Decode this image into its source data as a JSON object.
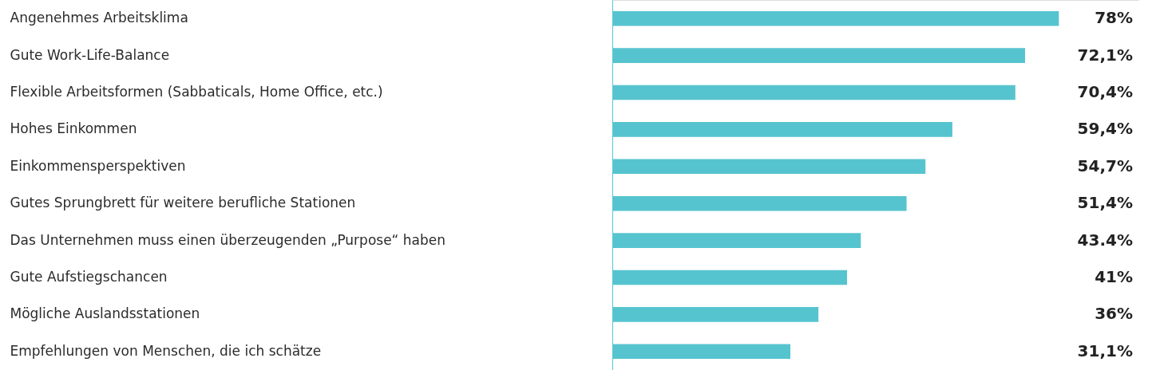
{
  "chart_data": {
    "type": "bar",
    "orientation": "horizontal",
    "color": "#56c4cf",
    "categories": [
      "Angenehmes Arbeitsklima",
      "Gute Work-Life-Balance",
      "Flexible Arbeitsformen (Sabbaticals, Home Office, etc.)",
      "Hohes Einkommen",
      "Einkommensperspektiven",
      "Gutes Sprungbrett für weitere berufliche Stationen",
      "Das Unternehmen muss einen überzeugenden „Purpose“ haben",
      "Gute Aufstiegschancen",
      "Mögliche Auslandsstationen",
      "Empfehlungen von Menschen, die ich schätze"
    ],
    "values": [
      78,
      72.1,
      70.4,
      59.4,
      54.7,
      51.4,
      43.4,
      41,
      36,
      31.1
    ],
    "value_labels": [
      "78%",
      "72,1%",
      "70,4%",
      "59,4%",
      "54,7%",
      "51,4%",
      "43.4%",
      "41%",
      "36%",
      "31,1%"
    ],
    "grid": false
  }
}
